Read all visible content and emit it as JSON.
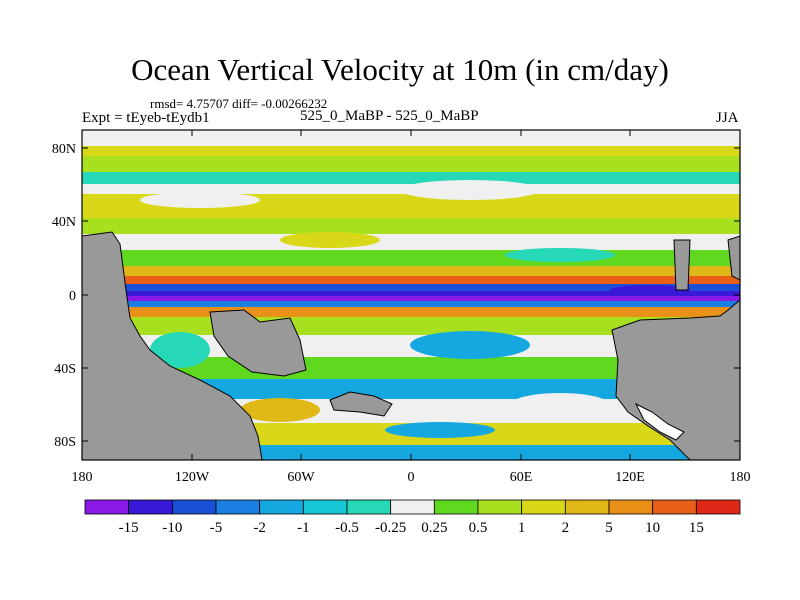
{
  "header": {
    "title": "Ocean Vertical Velocity at 10m (in cm/day)",
    "stats": "rmsd= 4.75707  diff= -0.00266232",
    "experiment": "Expt = tEyeb-tEydb1",
    "subtitle": "525_0_MaBP - 525_0_MaBP",
    "season": "JJA"
  },
  "map": {
    "lat_labels": [
      "80N",
      "40N",
      "0",
      "40S",
      "80S"
    ],
    "lon_labels": [
      "180",
      "120W",
      "60W",
      "0",
      "60E",
      "120E",
      "180"
    ],
    "land_color": "#999999"
  },
  "colorbar": {
    "labels": [
      "-15",
      "-10",
      "-5",
      "-2",
      "-1",
      "-0.5",
      "-0.25",
      "0.25",
      "0.5",
      "1",
      "2",
      "5",
      "10",
      "15"
    ],
    "colors": [
      "#8a19e8",
      "#3a19d6",
      "#1a50d8",
      "#1a7fe0",
      "#15a8e0",
      "#18c8d8",
      "#27d8b8",
      "#f0f0f0",
      "#60d820",
      "#a8e020",
      "#d8d818",
      "#e0b818",
      "#e89018",
      "#e86018",
      "#e02818"
    ]
  }
}
